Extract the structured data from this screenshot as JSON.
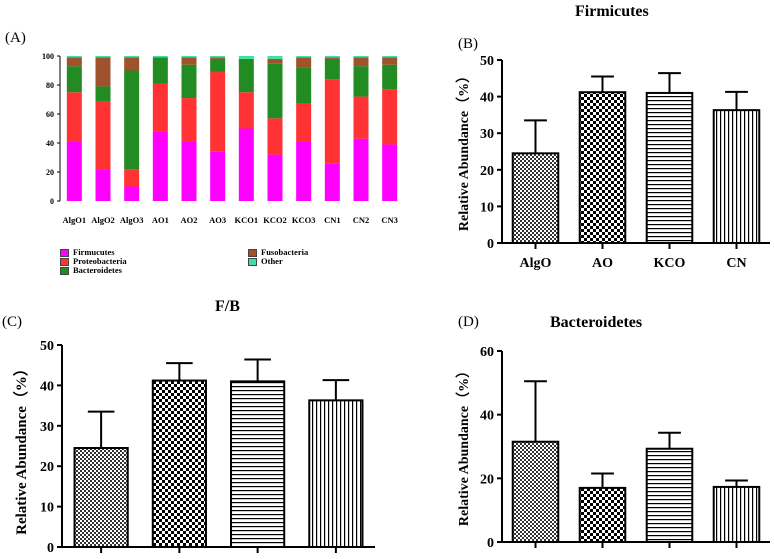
{
  "figure": {
    "labels": {
      "a": "(A)",
      "b": "(B)",
      "c": "(C)",
      "d": "(D)"
    }
  },
  "chart_data": [
    {
      "id": "A",
      "type": "bar",
      "stacked": true,
      "title": "",
      "xlabel": "",
      "ylabel": "",
      "ylim": [
        0,
        100
      ],
      "yticks": [
        0,
        20,
        40,
        60,
        80,
        100
      ],
      "categories": [
        "AlgO1",
        "AlgO2",
        "AlgO3",
        "AO1",
        "AO2",
        "AO3",
        "KCO1",
        "KCO2",
        "KCO3",
        "CN1",
        "CN2",
        "CN3"
      ],
      "series": [
        {
          "name": "Firmucutes",
          "color": "#ff00ff",
          "values": [
            41,
            22,
            10,
            48,
            41,
            34,
            50,
            32,
            41,
            26,
            43,
            39
          ]
        },
        {
          "name": "Proteobacteria",
          "color": "#ff3333",
          "values": [
            34,
            47,
            12,
            33,
            30,
            55,
            25,
            25,
            26,
            58,
            29,
            38
          ]
        },
        {
          "name": "Bacteroidetes",
          "color": "#228b22",
          "values": [
            18,
            10,
            68,
            18,
            23,
            9,
            23,
            38,
            25,
            14,
            21,
            17
          ]
        },
        {
          "name": "Fusobacteria",
          "color": "#a0522d",
          "values": [
            6,
            20,
            9,
            0,
            5,
            1,
            0,
            3,
            7,
            1,
            6,
            5
          ]
        },
        {
          "name": "Other",
          "color": "#40e0a0",
          "values": [
            1,
            1,
            1,
            1,
            1,
            1,
            2,
            2,
            1,
            1,
            1,
            1
          ]
        }
      ]
    },
    {
      "id": "B",
      "type": "bar",
      "title": "Firmicutes",
      "xlabel": "",
      "ylabel": "Relative Abundance（%）",
      "ylim": [
        0,
        50
      ],
      "yticks": [
        0,
        10,
        20,
        30,
        40,
        50
      ],
      "categories": [
        "AlgO",
        "AO",
        "KCO",
        "CN"
      ],
      "values": [
        24.5,
        41.2,
        41,
        36.3
      ],
      "errors": [
        9,
        4.3,
        5.4,
        5
      ],
      "patterns": [
        "check",
        "bigcheck",
        "hlines",
        "vlines"
      ]
    },
    {
      "id": "C",
      "type": "bar",
      "title": "F/B",
      "xlabel": "",
      "ylabel": "Relative Abundance（%）",
      "ylim": [
        0,
        50
      ],
      "yticks": [
        0,
        10,
        20,
        30,
        40,
        50
      ],
      "categories": [
        "",
        "",
        "",
        ""
      ],
      "values": [
        24.5,
        41.2,
        41,
        36.3
      ],
      "errors": [
        9,
        4.3,
        5.4,
        5
      ],
      "patterns": [
        "check",
        "bigcheck",
        "hlines",
        "vlines"
      ]
    },
    {
      "id": "D",
      "type": "bar",
      "title": "Bacteroidetes",
      "xlabel": "",
      "ylabel": "Relative Abundance（%）",
      "ylim": [
        0,
        60
      ],
      "yticks": [
        0,
        20,
        40,
        60
      ],
      "categories": [
        "",
        "",
        "",
        ""
      ],
      "values": [
        31.5,
        17,
        29.3,
        17.3
      ],
      "errors": [
        19,
        4.5,
        5,
        2
      ],
      "patterns": [
        "check",
        "bigcheck",
        "hlines",
        "vlines"
      ]
    }
  ]
}
